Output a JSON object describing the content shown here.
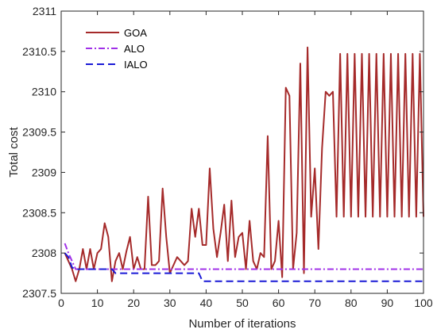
{
  "chart_data": {
    "type": "line",
    "title": "",
    "xlabel": "Number of iterations",
    "ylabel": "Total cost",
    "xlim": [
      0,
      100
    ],
    "ylim": [
      2307.5,
      2311
    ],
    "xticks": [
      0,
      10,
      20,
      30,
      40,
      50,
      60,
      70,
      80,
      90,
      100
    ],
    "xtick_labels": [
      "0",
      "10",
      "20",
      "30",
      "40",
      "50",
      "60",
      "70",
      "80",
      "90",
      "100"
    ],
    "yticks": [
      2307.5,
      2308,
      2308.5,
      2309,
      2309.5,
      2310,
      2310.5,
      2311
    ],
    "ytick_labels": [
      "2307.5",
      "2308",
      "2308.5",
      "2309",
      "2309.5",
      "2310",
      "2310.5",
      "2311"
    ],
    "grid": false,
    "legend_position": "top-left",
    "series": [
      {
        "name": "GOA",
        "color": "#A52A2A",
        "style": "solid",
        "x": [
          1,
          2,
          3,
          4,
          5,
          6,
          7,
          8,
          9,
          10,
          11,
          12,
          13,
          14,
          15,
          16,
          17,
          18,
          19,
          20,
          21,
          22,
          23,
          24,
          25,
          26,
          27,
          28,
          29,
          30,
          31,
          32,
          33,
          34,
          35,
          36,
          37,
          38,
          39,
          40,
          41,
          42,
          43,
          44,
          45,
          46,
          47,
          48,
          49,
          50,
          51,
          52,
          53,
          54,
          55,
          56,
          57,
          58,
          59,
          60,
          61,
          62,
          63,
          64,
          65,
          66,
          67,
          68,
          69,
          70,
          71,
          72,
          73,
          74,
          75,
          76,
          77,
          78,
          79,
          80,
          81,
          82,
          83,
          84,
          85,
          86,
          87,
          88,
          89,
          90,
          91,
          92,
          93,
          94,
          95,
          96,
          97,
          98,
          99,
          100
        ],
        "y": [
          2308.0,
          2307.9,
          2307.8,
          2307.65,
          2307.8,
          2308.05,
          2307.8,
          2308.05,
          2307.8,
          2308.0,
          2308.05,
          2308.37,
          2308.2,
          2307.65,
          2307.9,
          2308.0,
          2307.8,
          2308.02,
          2308.2,
          2307.8,
          2307.95,
          2307.8,
          2307.8,
          2308.7,
          2307.85,
          2307.85,
          2307.9,
          2308.8,
          2308.2,
          2307.75,
          2307.85,
          2307.95,
          2307.9,
          2307.85,
          2307.9,
          2308.55,
          2308.2,
          2308.55,
          2308.1,
          2308.1,
          2309.05,
          2308.3,
          2307.95,
          2308.25,
          2308.6,
          2307.9,
          2308.65,
          2307.95,
          2308.2,
          2308.25,
          2307.8,
          2308.4,
          2307.9,
          2307.8,
          2308.0,
          2307.95,
          2309.45,
          2307.8,
          2307.9,
          2308.4,
          2307.7,
          2310.05,
          2309.95,
          2307.8,
          2308.25,
          2310.35,
          2307.75,
          2310.55,
          2308.45,
          2309.05,
          2308.05,
          2309.3,
          2310.0,
          2309.95,
          2310.0,
          2308.45,
          2310.47,
          2308.45,
          2310.47,
          2308.45,
          2310.47,
          2308.45,
          2310.47,
          2308.45,
          2310.47,
          2308.45,
          2310.47,
          2308.45,
          2310.47,
          2308.45,
          2310.47,
          2308.45,
          2310.47,
          2308.45,
          2310.47,
          2308.45,
          2310.47,
          2308.45,
          2310.47,
          2308.45
        ]
      },
      {
        "name": "ALO",
        "color": "#A030E8",
        "style": "dashdot",
        "x": [
          1,
          2,
          3,
          4,
          100
        ],
        "y": [
          2308.12,
          2308.0,
          2307.9,
          2307.8,
          2307.8
        ]
      },
      {
        "name": "IALO",
        "color": "#1A1AD6",
        "style": "dashed",
        "x": [
          1,
          2,
          3,
          4,
          14,
          15,
          38,
          39,
          100
        ],
        "y": [
          2308.0,
          2307.95,
          2307.82,
          2307.8,
          2307.8,
          2307.75,
          2307.75,
          2307.65,
          2307.65
        ]
      }
    ]
  }
}
